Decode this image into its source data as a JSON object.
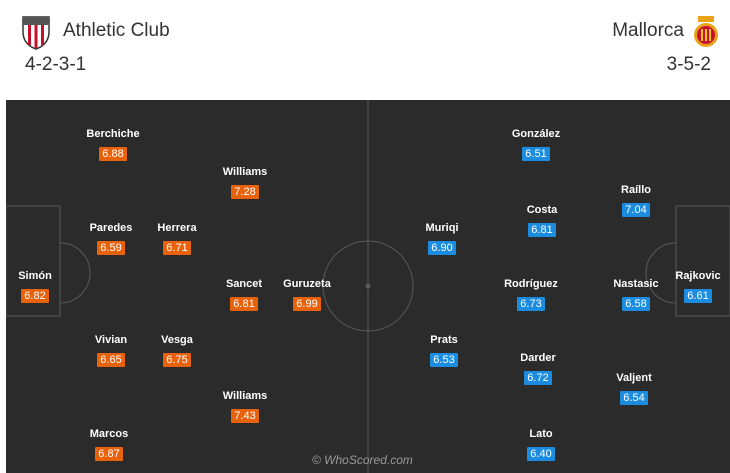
{
  "home": {
    "name": "Athletic Club",
    "formation": "4-2-3-1",
    "crest": "athletic-club-crest-icon",
    "rating_color": "#e8620c",
    "players": [
      {
        "name": "Simón",
        "rating": "6.82"
      },
      {
        "name": "Berchiche",
        "rating": "6.88"
      },
      {
        "name": "Paredes",
        "rating": "6.59"
      },
      {
        "name": "Vivian",
        "rating": "6.65"
      },
      {
        "name": "Marcos",
        "rating": "6.87"
      },
      {
        "name": "Herrera",
        "rating": "6.71"
      },
      {
        "name": "Vesga",
        "rating": "6.75"
      },
      {
        "name": "Williams",
        "rating": "7.28"
      },
      {
        "name": "Sancet",
        "rating": "6.81"
      },
      {
        "name": "Williams",
        "rating": "7.43"
      },
      {
        "name": "Guruzeta",
        "rating": "6.99"
      }
    ]
  },
  "away": {
    "name": "Mallorca",
    "formation": "3-5-2",
    "crest": "mallorca-crest-icon",
    "rating_color": "#1b8ce0",
    "players": [
      {
        "name": "Rajkovic",
        "rating": "6.61"
      },
      {
        "name": "Raíllo",
        "rating": "7.04"
      },
      {
        "name": "Nastasic",
        "rating": "6.58"
      },
      {
        "name": "Valjent",
        "rating": "6.54"
      },
      {
        "name": "González",
        "rating": "6.51"
      },
      {
        "name": "Costa",
        "rating": "6.81"
      },
      {
        "name": "Rodríguez",
        "rating": "6.73"
      },
      {
        "name": "Darder",
        "rating": "6.72"
      },
      {
        "name": "Lato",
        "rating": "6.40"
      },
      {
        "name": "Muriqi",
        "rating": "6.90"
      },
      {
        "name": "Prats",
        "rating": "6.53"
      }
    ]
  },
  "watermark": "© WhoScored.com"
}
